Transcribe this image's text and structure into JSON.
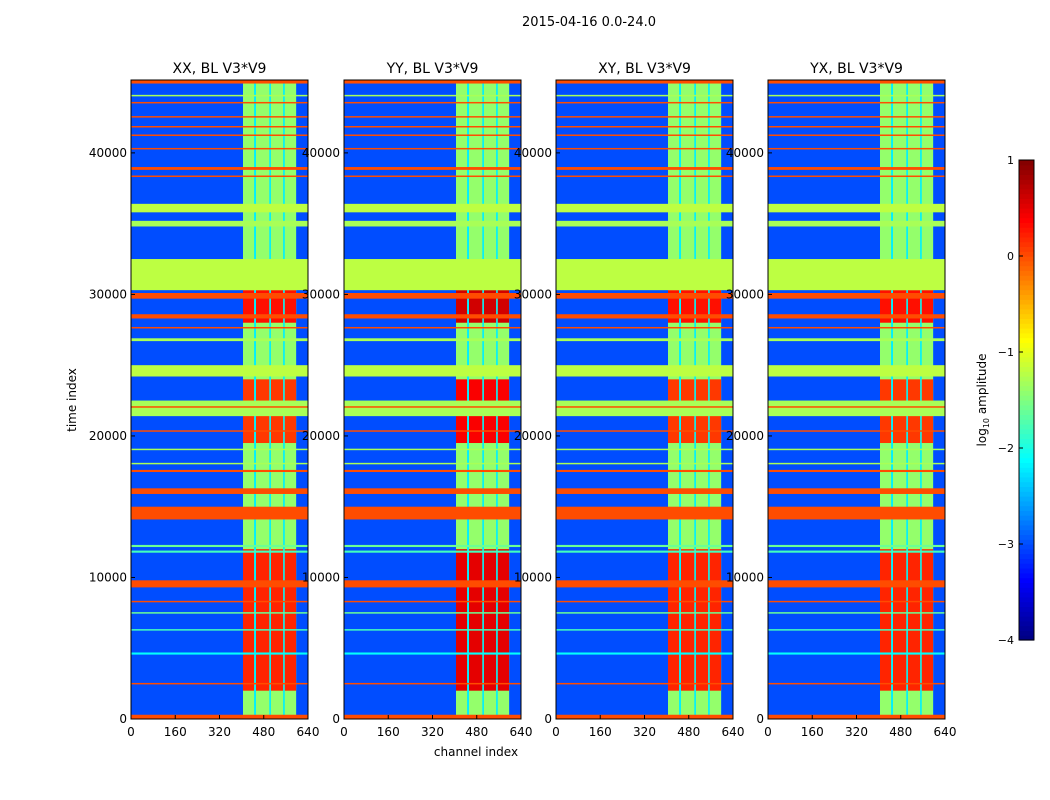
{
  "chart_data": {
    "type": "heatmap",
    "title": "2015-04-16 0.0-24.0",
    "xlabel": "channel index",
    "ylabel": "time index",
    "xlim": [
      0,
      640
    ],
    "ylim": [
      0,
      45150
    ],
    "xticks": [
      "0",
      "160",
      "320",
      "480",
      "640"
    ],
    "xtick_values": [
      0,
      160,
      320,
      480,
      640
    ],
    "yticks": [
      "0",
      "10000",
      "20000",
      "30000",
      "40000"
    ],
    "ytick_values": [
      0,
      10000,
      20000,
      30000,
      40000
    ],
    "colorbar": {
      "label": "log10 amplitude",
      "label_main": "log",
      "label_sub": "10",
      "label_rest": " amplitude",
      "range": [
        -4,
        1
      ],
      "ticks": [
        "−4",
        "−3",
        "−2",
        "−1",
        "0",
        "1"
      ],
      "tick_values": [
        -4,
        -3,
        -2,
        -1,
        0,
        1
      ],
      "colormap": "jet"
    },
    "panels": [
      {
        "title": "XX, BL V3*V9"
      },
      {
        "title": "YY, BL V3*V9"
      },
      {
        "title": "XY, BL V3*V9"
      },
      {
        "title": "YX, BL V3*V9"
      }
    ],
    "background_value": -3.0,
    "channel_blocks": [
      [
        405,
        445
      ],
      [
        452,
        500
      ],
      [
        506,
        550
      ],
      [
        556,
        597
      ]
    ],
    "channel_block_value": -1.4,
    "channel_gap_value": -2.2,
    "hot_time_ranges": [
      {
        "t": [
          2000,
          12000
        ],
        "v": 0.2
      },
      {
        "t": [
          19500,
          24000
        ],
        "v": 0.1
      },
      {
        "t": [
          28000,
          30300
        ],
        "v": 0.3
      }
    ],
    "bands": [
      {
        "t": [
          0,
          300
        ],
        "v": 0.0
      },
      {
        "t": [
          2450,
          2550
        ],
        "v": 0.0
      },
      {
        "t": [
          4550,
          4700
        ],
        "v": -2.1
      },
      {
        "t": [
          6250,
          6350
        ],
        "v": -1.8
      },
      {
        "t": [
          7450,
          7550
        ],
        "v": -1.6
      },
      {
        "t": [
          8250,
          8350
        ],
        "v": 0.0
      },
      {
        "t": [
          9300,
          9800
        ],
        "v": 0.0
      },
      {
        "t": [
          11750,
          11900
        ],
        "v": -1.8
      },
      {
        "t": [
          12150,
          12300
        ],
        "v": -1.6
      },
      {
        "t": [
          14100,
          15000
        ],
        "v": 0.0
      },
      {
        "t": [
          15900,
          16300
        ],
        "v": 0.0
      },
      {
        "t": [
          17450,
          17600
        ],
        "v": 0.0
      },
      {
        "t": [
          18000,
          18100
        ],
        "v": -1.3
      },
      {
        "t": [
          19000,
          19100
        ],
        "v": -1.3
      },
      {
        "t": [
          20300,
          20400
        ],
        "v": 0.0
      },
      {
        "t": [
          21400,
          22500
        ],
        "v": -1.3
      },
      {
        "t": [
          22000,
          22100
        ],
        "v": 0.0
      },
      {
        "t": [
          24200,
          25000
        ],
        "v": -1.2
      },
      {
        "t": [
          26700,
          26900
        ],
        "v": -1.3
      },
      {
        "t": [
          27600,
          27700
        ],
        "v": 0.0
      },
      {
        "t": [
          28300,
          28600
        ],
        "v": 0.0
      },
      {
        "t": [
          29700,
          30100
        ],
        "v": 0.0
      },
      {
        "t": [
          30300,
          32500
        ],
        "v": -1.2
      },
      {
        "t": [
          34800,
          35200
        ],
        "v": -1.3
      },
      {
        "t": [
          35800,
          36400
        ],
        "v": -1.2
      },
      {
        "t": [
          38300,
          38400
        ],
        "v": 0.0
      },
      {
        "t": [
          38800,
          39000
        ],
        "v": 0.0
      },
      {
        "t": [
          40250,
          40350
        ],
        "v": 0.0
      },
      {
        "t": [
          41200,
          41300
        ],
        "v": 0.0
      },
      {
        "t": [
          41800,
          41900
        ],
        "v": 0.0
      },
      {
        "t": [
          42500,
          42600
        ],
        "v": 0.0
      },
      {
        "t": [
          43500,
          43600
        ],
        "v": 0.0
      },
      {
        "t": [
          44000,
          44100
        ],
        "v": -1.3
      },
      {
        "t": [
          44900,
          45150
        ],
        "v": 0.0
      }
    ]
  }
}
